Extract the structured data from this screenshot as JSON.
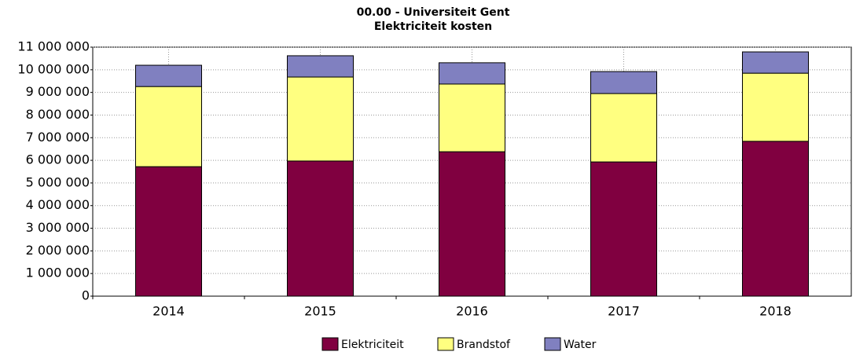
{
  "chart_data": {
    "type": "stacked_bar",
    "title": "00.00 - Universiteit Gent",
    "subtitle": "Elektriciteit kosten",
    "categories": [
      "2014",
      "2015",
      "2016",
      "2017",
      "2018"
    ],
    "series": [
      {
        "name": "Elektriciteit",
        "color": "#800040",
        "values": [
          5720000,
          5970000,
          6380000,
          5930000,
          6840000
        ]
      },
      {
        "name": "Brandstof",
        "color": "#ffff80",
        "values": [
          3540000,
          3710000,
          2990000,
          3020000,
          3010000
        ]
      },
      {
        "name": "Water",
        "color": "#8080c0",
        "values": [
          940000,
          940000,
          940000,
          970000,
          940000
        ]
      }
    ],
    "ylim": [
      0,
      11000000
    ],
    "yticks": [
      0,
      {
        "value": 1000000,
        "label": "1 000 000"
      },
      {
        "value": 2000000,
        "label": "2 000 000"
      },
      {
        "value": 3000000,
        "label": "3 000 000"
      },
      {
        "value": 4000000,
        "label": "4 000 000"
      },
      {
        "value": 5000000,
        "label": "5 000 000"
      },
      {
        "value": 6000000,
        "label": "6 000 000"
      },
      {
        "value": 7000000,
        "label": "7 000 000"
      },
      {
        "value": 8000000,
        "label": "8 000 000"
      },
      {
        "value": 9000000,
        "label": "9 000 000"
      },
      {
        "value": 10000000,
        "label": "10 000 000"
      },
      {
        "value": 11000000,
        "label": "11 000 000"
      }
    ],
    "grid": true,
    "legend": "bottom"
  }
}
